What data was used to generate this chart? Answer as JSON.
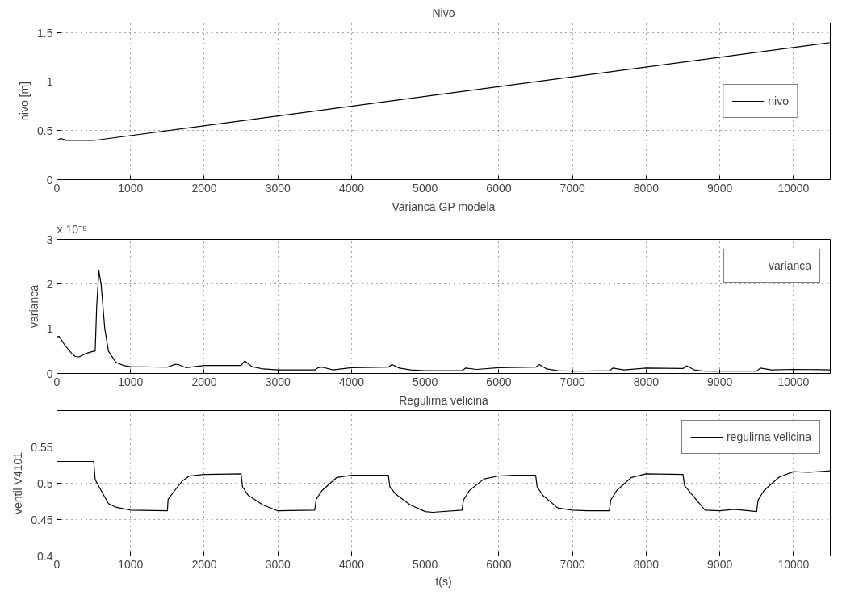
{
  "chart_data": [
    {
      "type": "line",
      "title": "Nivo",
      "ylabel": "nivo [m]",
      "xlim": [
        0,
        10500
      ],
      "xticks": [
        0,
        1000,
        2000,
        3000,
        4000,
        5000,
        6000,
        7000,
        8000,
        9000,
        10000
      ],
      "ylim": [
        0,
        1.6
      ],
      "yticks": [
        0,
        0.5,
        1,
        1.5
      ],
      "grid": true,
      "legend": "right",
      "series": [
        {
          "name": "nivo",
          "color": "#000000",
          "x": [
            0,
            50,
            100,
            120,
            500,
            10500
          ],
          "values": [
            0.4,
            0.42,
            0.41,
            0.4,
            0.4,
            1.4
          ]
        }
      ]
    },
    {
      "type": "line",
      "title": "Varianca GP modela",
      "ylabel": "varianca",
      "annotations": [
        "x 10⁻⁵"
      ],
      "xlim": [
        0,
        10500
      ],
      "xticks": [
        0,
        1000,
        2000,
        3000,
        4000,
        5000,
        6000,
        7000,
        8000,
        9000,
        10000
      ],
      "ylim": [
        0,
        3
      ],
      "yticks": [
        0,
        1,
        2,
        3
      ],
      "grid": true,
      "legend": "top right",
      "series": [
        {
          "name": "varianca",
          "color": "#000000",
          "x": [
            0,
            30,
            100,
            200,
            250,
            300,
            400,
            500,
            520,
            540,
            570,
            600,
            650,
            700,
            800,
            900,
            1000,
            1500,
            1600,
            1650,
            1750,
            2000,
            2500,
            2550,
            2650,
            2800,
            3000,
            3500,
            3550,
            3600,
            3750,
            4000,
            4500,
            4550,
            4650,
            4800,
            5000,
            5500,
            5550,
            5700,
            6000,
            6500,
            6550,
            6650,
            6800,
            7000,
            7500,
            7550,
            7700,
            8000,
            8500,
            8550,
            8650,
            8800,
            9000,
            9500,
            9550,
            9700,
            10000,
            10500
          ],
          "values": [
            0.82,
            0.83,
            0.65,
            0.45,
            0.38,
            0.37,
            0.45,
            0.5,
            0.5,
            1.5,
            2.3,
            2.0,
            1.0,
            0.5,
            0.25,
            0.18,
            0.15,
            0.14,
            0.2,
            0.2,
            0.13,
            0.18,
            0.18,
            0.28,
            0.15,
            0.1,
            0.08,
            0.08,
            0.13,
            0.14,
            0.08,
            0.13,
            0.14,
            0.2,
            0.12,
            0.08,
            0.06,
            0.06,
            0.12,
            0.09,
            0.13,
            0.14,
            0.2,
            0.1,
            0.06,
            0.05,
            0.06,
            0.12,
            0.08,
            0.12,
            0.11,
            0.17,
            0.08,
            0.05,
            0.05,
            0.05,
            0.12,
            0.08,
            0.09,
            0.08
          ]
        }
      ]
    },
    {
      "type": "line",
      "title": "Regulirna velicina",
      "xlabel": "t(s)",
      "ylabel": "ventil V4101",
      "xlim": [
        0,
        10500
      ],
      "xticks": [
        0,
        1000,
        2000,
        3000,
        4000,
        5000,
        6000,
        7000,
        8000,
        9000,
        10000
      ],
      "ylim": [
        0.4,
        0.6
      ],
      "yticks": [
        0.4,
        0.45,
        0.5,
        0.55
      ],
      "grid": true,
      "legend": "top right",
      "series": [
        {
          "name": "regulirna velicina",
          "color": "#000000",
          "x": [
            0,
            500,
            520,
            600,
            700,
            800,
            1000,
            1500,
            1510,
            1600,
            1700,
            1800,
            2000,
            2500,
            2520,
            2600,
            2800,
            3000,
            3500,
            3520,
            3600,
            3800,
            4000,
            4500,
            4520,
            4600,
            4800,
            5000,
            5100,
            5500,
            5520,
            5600,
            5800,
            6000,
            6200,
            6500,
            6520,
            6600,
            6800,
            7000,
            7200,
            7500,
            7520,
            7600,
            7800,
            8000,
            8500,
            8520,
            8600,
            8800,
            9000,
            9200,
            9500,
            9520,
            9600,
            9800,
            10000,
            10200,
            10500
          ],
          "values": [
            0.53,
            0.53,
            0.505,
            0.49,
            0.472,
            0.467,
            0.463,
            0.462,
            0.478,
            0.49,
            0.503,
            0.51,
            0.512,
            0.513,
            0.495,
            0.483,
            0.47,
            0.462,
            0.463,
            0.478,
            0.49,
            0.508,
            0.511,
            0.511,
            0.495,
            0.485,
            0.47,
            0.461,
            0.46,
            0.463,
            0.477,
            0.49,
            0.506,
            0.51,
            0.511,
            0.511,
            0.495,
            0.483,
            0.466,
            0.463,
            0.462,
            0.462,
            0.477,
            0.49,
            0.508,
            0.513,
            0.512,
            0.497,
            0.487,
            0.463,
            0.462,
            0.464,
            0.461,
            0.477,
            0.49,
            0.508,
            0.516,
            0.515,
            0.517
          ]
        }
      ]
    }
  ]
}
